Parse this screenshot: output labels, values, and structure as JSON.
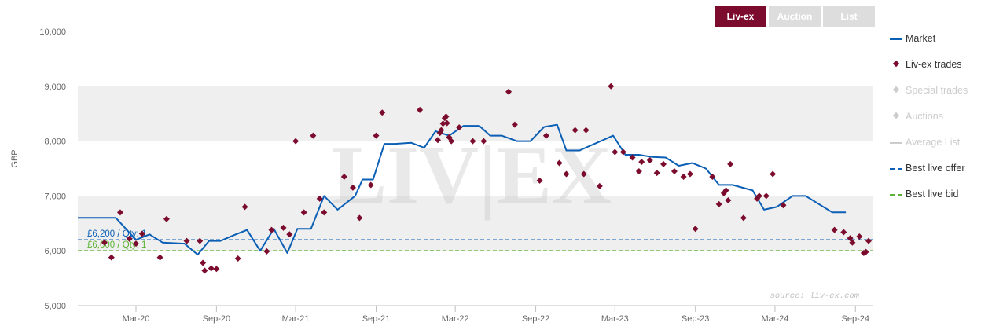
{
  "tabs": [
    {
      "label": "Liv-ex",
      "active": true
    },
    {
      "label": "Auction",
      "active": false
    },
    {
      "label": "List",
      "active": false
    }
  ],
  "watermark": "LIV|EX",
  "source_note": "source: liv-ex.com",
  "colors": {
    "accent": "#7b0c2e",
    "market": "#0b5fb5",
    "offer": "#0b5fb5",
    "bid": "#5cb133",
    "disabled": "#cccccc",
    "band": "#efefef"
  },
  "legend": [
    {
      "label": "Market",
      "symbol": "line",
      "color": "#0b5fb5",
      "enabled": true
    },
    {
      "label": "Liv-ex trades",
      "symbol": "diamond",
      "color": "#7b0c2e",
      "enabled": true
    },
    {
      "label": "Special trades",
      "symbol": "diamond",
      "color": "#cccccc",
      "enabled": false
    },
    {
      "label": "Auctions",
      "symbol": "diamond",
      "color": "#cccccc",
      "enabled": false
    },
    {
      "label": "Average List",
      "symbol": "line",
      "color": "#cccccc",
      "enabled": false
    },
    {
      "label": "Best live offer",
      "symbol": "dash",
      "color": "#0b5fb5",
      "enabled": true
    },
    {
      "label": "Best live bid",
      "symbol": "dash",
      "color": "#5cb133",
      "enabled": true
    }
  ],
  "chart_data": {
    "type": "line",
    "ylabel": "GBP",
    "xlabel": "",
    "ylim": [
      5000,
      10000
    ],
    "xlim": [
      "2019-10-20",
      "2024-10-10"
    ],
    "y_ticks": [
      5000,
      6000,
      7000,
      8000,
      9000,
      10000
    ],
    "y_tick_labels": [
      "5,000",
      "6,000",
      "7,000",
      "8,000",
      "9,000",
      "10,000"
    ],
    "x_ticks": [
      "2020-03-01",
      "2020-09-01",
      "2021-03-01",
      "2021-09-01",
      "2022-03-01",
      "2022-09-01",
      "2023-03-01",
      "2023-09-01",
      "2024-03-01",
      "2024-09-01"
    ],
    "x_tick_labels": [
      "Mar-20",
      "Sep-20",
      "Mar-21",
      "Sep-21",
      "Mar-22",
      "Sep-22",
      "Mar-23",
      "Sep-23",
      "Mar-24",
      "Sep-24"
    ],
    "grid": "alternating horizontal bands",
    "legend_position": "right",
    "series": [
      {
        "name": "Market",
        "type": "line",
        "points": [
          [
            "2019-10-20",
            6600
          ],
          [
            "2020-01-15",
            6600
          ],
          [
            "2020-03-01",
            6200
          ],
          [
            "2020-04-01",
            6300
          ],
          [
            "2020-05-01",
            6150
          ],
          [
            "2020-06-20",
            6130
          ],
          [
            "2020-07-20",
            5930
          ],
          [
            "2020-08-15",
            6180
          ],
          [
            "2020-09-10",
            6180
          ],
          [
            "2020-10-15",
            6300
          ],
          [
            "2020-11-10",
            6380
          ],
          [
            "2020-12-10",
            6000
          ],
          [
            "2021-01-10",
            6400
          ],
          [
            "2021-02-10",
            5960
          ],
          [
            "2021-03-05",
            6400
          ],
          [
            "2021-04-05",
            6400
          ],
          [
            "2021-05-05",
            7000
          ],
          [
            "2021-06-05",
            6750
          ],
          [
            "2021-07-15",
            7000
          ],
          [
            "2021-08-01",
            7300
          ],
          [
            "2021-08-25",
            7300
          ],
          [
            "2021-09-20",
            7950
          ],
          [
            "2021-10-15",
            7950
          ],
          [
            "2021-11-20",
            7970
          ],
          [
            "2021-12-20",
            7880
          ],
          [
            "2022-01-15",
            8180
          ],
          [
            "2022-02-15",
            8100
          ],
          [
            "2022-03-20",
            8280
          ],
          [
            "2022-04-25",
            8280
          ],
          [
            "2022-05-20",
            8100
          ],
          [
            "2022-06-15",
            8100
          ],
          [
            "2022-07-20",
            8000
          ],
          [
            "2022-08-20",
            8000
          ],
          [
            "2022-09-20",
            8260
          ],
          [
            "2022-10-20",
            8300
          ],
          [
            "2022-11-10",
            7830
          ],
          [
            "2022-12-10",
            7830
          ],
          [
            "2023-02-25",
            8100
          ],
          [
            "2023-03-25",
            7750
          ],
          [
            "2023-04-25",
            7750
          ],
          [
            "2023-05-25",
            7710
          ],
          [
            "2023-06-25",
            7700
          ],
          [
            "2023-07-25",
            7550
          ],
          [
            "2023-08-25",
            7600
          ],
          [
            "2023-09-25",
            7500
          ],
          [
            "2023-10-25",
            7200
          ],
          [
            "2023-11-25",
            7200
          ],
          [
            "2024-01-10",
            7100
          ],
          [
            "2024-02-05",
            6750
          ],
          [
            "2024-03-05",
            6800
          ],
          [
            "2024-04-10",
            7000
          ],
          [
            "2024-05-10",
            7000
          ],
          [
            "2024-07-10",
            6700
          ],
          [
            "2024-08-10",
            6700
          ]
        ]
      },
      {
        "name": "Liv-ex trades",
        "type": "scatter",
        "points": [
          [
            "2019-12-20",
            6150
          ],
          [
            "2020-01-05",
            5880
          ],
          [
            "2020-01-25",
            6700
          ],
          [
            "2020-02-15",
            6220
          ],
          [
            "2020-03-01",
            6130
          ],
          [
            "2020-03-15",
            6310
          ],
          [
            "2020-04-25",
            5880
          ],
          [
            "2020-05-10",
            6580
          ],
          [
            "2020-06-25",
            6180
          ],
          [
            "2020-07-25",
            6180
          ],
          [
            "2020-08-05",
            5640
          ],
          [
            "2020-08-20",
            5680
          ],
          [
            "2020-09-01",
            5670
          ],
          [
            "2020-08-01",
            5780
          ],
          [
            "2020-10-20",
            5860
          ],
          [
            "2020-11-05",
            6800
          ],
          [
            "2020-12-25",
            5990
          ],
          [
            "2021-01-05",
            6380
          ],
          [
            "2021-02-01",
            6420
          ],
          [
            "2021-02-15",
            6300
          ],
          [
            "2021-03-20",
            6700
          ],
          [
            "2021-03-01",
            8000
          ],
          [
            "2021-04-10",
            8100
          ],
          [
            "2021-04-25",
            6950
          ],
          [
            "2021-05-05",
            6700
          ],
          [
            "2021-06-20",
            7350
          ],
          [
            "2021-07-10",
            7150
          ],
          [
            "2021-07-25",
            6600
          ],
          [
            "2021-08-20",
            7200
          ],
          [
            "2021-09-01",
            8100
          ],
          [
            "2021-09-15",
            8520
          ],
          [
            "2021-12-10",
            8570
          ],
          [
            "2022-01-20",
            8020
          ],
          [
            "2022-01-25",
            8150
          ],
          [
            "2022-01-28",
            8200
          ],
          [
            "2022-02-01",
            8320
          ],
          [
            "2022-02-05",
            8420
          ],
          [
            "2022-02-08",
            8450
          ],
          [
            "2022-02-10",
            8330
          ],
          [
            "2022-02-15",
            8070
          ],
          [
            "2022-02-20",
            8000
          ],
          [
            "2022-03-10",
            8250
          ],
          [
            "2022-04-10",
            8000
          ],
          [
            "2022-05-05",
            8000
          ],
          [
            "2022-07-01",
            8900
          ],
          [
            "2022-07-15",
            8300
          ],
          [
            "2022-09-10",
            7280
          ],
          [
            "2022-09-25",
            8100
          ],
          [
            "2022-10-25",
            7600
          ],
          [
            "2022-11-10",
            7400
          ],
          [
            "2022-11-30",
            8200
          ],
          [
            "2022-12-20",
            7400
          ],
          [
            "2022-12-25",
            8200
          ],
          [
            "2023-01-25",
            7180
          ],
          [
            "2023-02-20",
            9000
          ],
          [
            "2023-03-01",
            7800
          ],
          [
            "2023-03-20",
            7800
          ],
          [
            "2023-04-10",
            7700
          ],
          [
            "2023-04-25",
            7450
          ],
          [
            "2023-05-01",
            7620
          ],
          [
            "2023-05-20",
            7650
          ],
          [
            "2023-06-05",
            7420
          ],
          [
            "2023-06-20",
            7580
          ],
          [
            "2023-07-15",
            7450
          ],
          [
            "2023-08-05",
            7350
          ],
          [
            "2023-08-20",
            7400
          ],
          [
            "2023-09-01",
            6400
          ],
          [
            "2023-10-10",
            7350
          ],
          [
            "2023-10-25",
            6850
          ],
          [
            "2023-11-05",
            7050
          ],
          [
            "2023-11-10",
            7100
          ],
          [
            "2023-11-15",
            6920
          ],
          [
            "2023-11-20",
            7580
          ],
          [
            "2023-12-20",
            6600
          ],
          [
            "2024-01-20",
            6950
          ],
          [
            "2024-01-25",
            7000
          ],
          [
            "2024-02-10",
            7000
          ],
          [
            "2024-02-25",
            7400
          ],
          [
            "2024-03-20",
            6830
          ],
          [
            "2024-07-15",
            6380
          ],
          [
            "2024-08-05",
            6340
          ],
          [
            "2024-08-20",
            6230
          ],
          [
            "2024-08-25",
            6150
          ],
          [
            "2024-09-10",
            6260
          ],
          [
            "2024-09-20",
            5960
          ],
          [
            "2024-09-25",
            5980
          ],
          [
            "2024-10-01",
            6180
          ]
        ]
      },
      {
        "name": "Best live offer",
        "type": "hline",
        "value": 6200,
        "label": "£6,200 / Qty: 1"
      },
      {
        "name": "Best live bid",
        "type": "hline",
        "value": 6000,
        "label": "£6,000 / Qty: 1"
      }
    ]
  }
}
